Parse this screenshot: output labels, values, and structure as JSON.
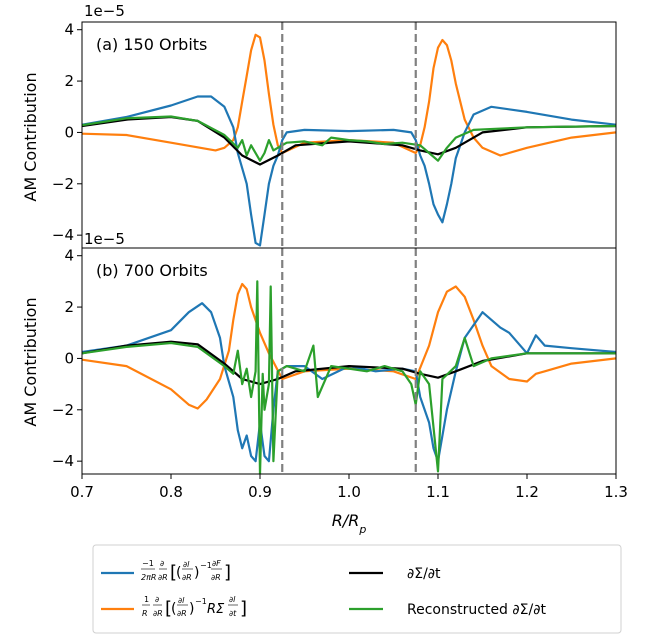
{
  "chart_data": [
    {
      "type": "line",
      "panel_title": "(a) 150 Orbits",
      "ylabel": "AM Contribution",
      "y_scale_label": "1e−5",
      "x_scale": 1e-05,
      "xlim": [
        0.7,
        1.3
      ],
      "ylim": [
        -4.5,
        4.3
      ],
      "yticks": [
        -4,
        -2,
        0,
        2,
        4
      ],
      "vlines": [
        0.925,
        1.075
      ],
      "series": [
        {
          "name": "flux",
          "points": [
            [
              0.7,
              0.3
            ],
            [
              0.75,
              0.6
            ],
            [
              0.8,
              1.05
            ],
            [
              0.83,
              1.4
            ],
            [
              0.845,
              1.4
            ],
            [
              0.86,
              1.0
            ],
            [
              0.87,
              0.2
            ],
            [
              0.875,
              -0.8
            ],
            [
              0.885,
              -2.0
            ],
            [
              0.89,
              -3.2
            ],
            [
              0.895,
              -4.3
            ],
            [
              0.9,
              -4.4
            ],
            [
              0.905,
              -3.2
            ],
            [
              0.91,
              -2.0
            ],
            [
              0.915,
              -1.3
            ],
            [
              0.92,
              -0.9
            ],
            [
              0.925,
              -0.3
            ],
            [
              0.93,
              0.0
            ],
            [
              0.95,
              0.1
            ],
            [
              1.0,
              0.05
            ],
            [
              1.05,
              0.1
            ],
            [
              1.07,
              0.0
            ],
            [
              1.075,
              -0.3
            ],
            [
              1.08,
              -0.9
            ],
            [
              1.085,
              -1.3
            ],
            [
              1.09,
              -2.0
            ],
            [
              1.095,
              -2.8
            ],
            [
              1.1,
              -3.2
            ],
            [
              1.105,
              -3.5
            ],
            [
              1.11,
              -2.8
            ],
            [
              1.115,
              -2.0
            ],
            [
              1.12,
              -1.0
            ],
            [
              1.13,
              0.0
            ],
            [
              1.14,
              0.7
            ],
            [
              1.16,
              1.0
            ],
            [
              1.2,
              0.8
            ],
            [
              1.25,
              0.5
            ],
            [
              1.3,
              0.3
            ]
          ]
        },
        {
          "name": "torque",
          "points": [
            [
              0.7,
              -0.05
            ],
            [
              0.75,
              -0.1
            ],
            [
              0.8,
              -0.4
            ],
            [
              0.85,
              -0.7
            ],
            [
              0.86,
              -0.6
            ],
            [
              0.87,
              -0.3
            ],
            [
              0.875,
              0.2
            ],
            [
              0.88,
              1.2
            ],
            [
              0.885,
              2.2
            ],
            [
              0.89,
              3.2
            ],
            [
              0.895,
              3.8
            ],
            [
              0.9,
              3.7
            ],
            [
              0.905,
              2.8
            ],
            [
              0.91,
              1.5
            ],
            [
              0.915,
              0.3
            ],
            [
              0.92,
              -0.5
            ],
            [
              0.925,
              -0.8
            ],
            [
              0.95,
              -0.4
            ],
            [
              1.0,
              -0.3
            ],
            [
              1.05,
              -0.4
            ],
            [
              1.075,
              -0.8
            ],
            [
              1.08,
              -0.5
            ],
            [
              1.085,
              0.2
            ],
            [
              1.09,
              1.2
            ],
            [
              1.095,
              2.5
            ],
            [
              1.1,
              3.3
            ],
            [
              1.105,
              3.6
            ],
            [
              1.11,
              3.4
            ],
            [
              1.115,
              2.8
            ],
            [
              1.12,
              1.9
            ],
            [
              1.13,
              0.5
            ],
            [
              1.14,
              -0.2
            ],
            [
              1.15,
              -0.6
            ],
            [
              1.17,
              -0.9
            ],
            [
              1.2,
              -0.6
            ],
            [
              1.25,
              -0.2
            ],
            [
              1.3,
              0.0
            ]
          ]
        },
        {
          "name": "dsigma",
          "points": [
            [
              0.7,
              0.25
            ],
            [
              0.75,
              0.5
            ],
            [
              0.8,
              0.6
            ],
            [
              0.83,
              0.45
            ],
            [
              0.86,
              -0.2
            ],
            [
              0.88,
              -0.9
            ],
            [
              0.9,
              -1.25
            ],
            [
              0.92,
              -0.9
            ],
            [
              0.94,
              -0.5
            ],
            [
              1.0,
              -0.35
            ],
            [
              1.06,
              -0.5
            ],
            [
              1.08,
              -0.7
            ],
            [
              1.1,
              -0.85
            ],
            [
              1.12,
              -0.6
            ],
            [
              1.15,
              0.0
            ],
            [
              1.2,
              0.2
            ],
            [
              1.3,
              0.25
            ]
          ]
        },
        {
          "name": "recon",
          "points": [
            [
              0.7,
              0.28
            ],
            [
              0.75,
              0.55
            ],
            [
              0.8,
              0.62
            ],
            [
              0.83,
              0.45
            ],
            [
              0.86,
              -0.1
            ],
            [
              0.875,
              -0.6
            ],
            [
              0.88,
              -0.3
            ],
            [
              0.885,
              -0.9
            ],
            [
              0.89,
              -0.5
            ],
            [
              0.9,
              -1.1
            ],
            [
              0.905,
              -0.8
            ],
            [
              0.91,
              -0.3
            ],
            [
              0.915,
              -0.7
            ],
            [
              0.92,
              -0.6
            ],
            [
              0.93,
              -0.4
            ],
            [
              0.95,
              -0.35
            ],
            [
              0.97,
              -0.5
            ],
            [
              0.98,
              -0.2
            ],
            [
              1.0,
              -0.3
            ],
            [
              1.02,
              -0.35
            ],
            [
              1.04,
              -0.45
            ],
            [
              1.06,
              -0.4
            ],
            [
              1.08,
              -0.5
            ],
            [
              1.09,
              -0.8
            ],
            [
              1.1,
              -1.1
            ],
            [
              1.11,
              -0.6
            ],
            [
              1.12,
              -0.2
            ],
            [
              1.14,
              0.1
            ],
            [
              1.2,
              0.2
            ],
            [
              1.3,
              0.25
            ]
          ]
        }
      ]
    },
    {
      "type": "line",
      "panel_title": "(b) 700 Orbits",
      "ylabel": "AM Contribution",
      "y_scale_label": "1e−5",
      "xlabel": "R/R_p",
      "xlim": [
        0.7,
        1.3
      ],
      "ylim": [
        -4.5,
        4.3
      ],
      "xticks": [
        0.7,
        0.8,
        0.9,
        1.0,
        1.1,
        1.2,
        1.3
      ],
      "xtick_labels": [
        "0.7",
        "0.8",
        "0.9",
        "1.0",
        "1.1",
        "1.2",
        "1.3"
      ],
      "yticks": [
        -4,
        -2,
        0,
        2,
        4
      ],
      "vlines": [
        0.925,
        1.075
      ],
      "series": [
        {
          "name": "flux",
          "points": [
            [
              0.7,
              0.25
            ],
            [
              0.75,
              0.5
            ],
            [
              0.8,
              1.1
            ],
            [
              0.82,
              1.8
            ],
            [
              0.835,
              2.15
            ],
            [
              0.845,
              1.8
            ],
            [
              0.855,
              0.8
            ],
            [
              0.86,
              -0.3
            ],
            [
              0.87,
              -1.5
            ],
            [
              0.875,
              -2.8
            ],
            [
              0.88,
              -3.5
            ],
            [
              0.885,
              -3.0
            ],
            [
              0.89,
              -3.8
            ],
            [
              0.895,
              -4.0
            ],
            [
              0.9,
              -2.5
            ],
            [
              0.905,
              -3.8
            ],
            [
              0.91,
              -4.0
            ],
            [
              0.915,
              -2.0
            ],
            [
              0.92,
              -0.5
            ],
            [
              0.93,
              -0.3
            ],
            [
              0.95,
              -0.3
            ],
            [
              0.97,
              -0.8
            ],
            [
              1.0,
              -0.3
            ],
            [
              1.03,
              -0.5
            ],
            [
              1.06,
              -0.4
            ],
            [
              1.075,
              -0.5
            ],
            [
              1.08,
              -1.5
            ],
            [
              1.09,
              -2.5
            ],
            [
              1.095,
              -3.5
            ],
            [
              1.1,
              -4.0
            ],
            [
              1.11,
              -2.0
            ],
            [
              1.12,
              -0.5
            ],
            [
              1.13,
              0.8
            ],
            [
              1.15,
              1.8
            ],
            [
              1.17,
              1.2
            ],
            [
              1.18,
              1.0
            ],
            [
              1.2,
              0.2
            ],
            [
              1.21,
              0.9
            ],
            [
              1.22,
              0.5
            ],
            [
              1.25,
              0.4
            ],
            [
              1.3,
              0.25
            ]
          ]
        },
        {
          "name": "torque",
          "points": [
            [
              0.7,
              -0.05
            ],
            [
              0.75,
              -0.3
            ],
            [
              0.8,
              -1.2
            ],
            [
              0.82,
              -1.8
            ],
            [
              0.83,
              -1.95
            ],
            [
              0.84,
              -1.6
            ],
            [
              0.855,
              -0.8
            ],
            [
              0.865,
              0.3
            ],
            [
              0.87,
              1.5
            ],
            [
              0.875,
              2.5
            ],
            [
              0.88,
              2.9
            ],
            [
              0.885,
              2.7
            ],
            [
              0.89,
              2.0
            ],
            [
              0.9,
              1.0
            ],
            [
              0.91,
              0.2
            ],
            [
              0.925,
              -0.8
            ],
            [
              0.95,
              -0.5
            ],
            [
              1.0,
              -0.4
            ],
            [
              1.05,
              -0.5
            ],
            [
              1.075,
              -0.8
            ],
            [
              1.09,
              0.5
            ],
            [
              1.1,
              1.8
            ],
            [
              1.11,
              2.6
            ],
            [
              1.12,
              2.8
            ],
            [
              1.13,
              2.4
            ],
            [
              1.14,
              1.5
            ],
            [
              1.15,
              0.5
            ],
            [
              1.16,
              -0.3
            ],
            [
              1.18,
              -0.8
            ],
            [
              1.2,
              -0.9
            ],
            [
              1.21,
              -0.6
            ],
            [
              1.22,
              -0.5
            ],
            [
              1.25,
              -0.2
            ],
            [
              1.3,
              0.0
            ]
          ]
        },
        {
          "name": "dsigma",
          "points": [
            [
              0.7,
              0.2
            ],
            [
              0.75,
              0.5
            ],
            [
              0.8,
              0.65
            ],
            [
              0.83,
              0.55
            ],
            [
              0.86,
              -0.2
            ],
            [
              0.88,
              -0.8
            ],
            [
              0.9,
              -1.0
            ],
            [
              0.92,
              -0.8
            ],
            [
              0.94,
              -0.5
            ],
            [
              1.0,
              -0.3
            ],
            [
              1.06,
              -0.4
            ],
            [
              1.08,
              -0.6
            ],
            [
              1.1,
              -0.75
            ],
            [
              1.12,
              -0.5
            ],
            [
              1.15,
              -0.1
            ],
            [
              1.2,
              0.2
            ],
            [
              1.3,
              0.2
            ]
          ]
        },
        {
          "name": "recon",
          "points": [
            [
              0.7,
              0.2
            ],
            [
              0.75,
              0.45
            ],
            [
              0.8,
              0.6
            ],
            [
              0.83,
              0.45
            ],
            [
              0.86,
              -0.3
            ],
            [
              0.87,
              -0.6
            ],
            [
              0.875,
              0.3
            ],
            [
              0.88,
              -1.0
            ],
            [
              0.885,
              -0.4
            ],
            [
              0.89,
              -1.5
            ],
            [
              0.895,
              -0.5
            ],
            [
              0.897,
              3.0
            ],
            [
              0.9,
              -4.5
            ],
            [
              0.903,
              -0.6
            ],
            [
              0.905,
              -2.0
            ],
            [
              0.91,
              -1.0
            ],
            [
              0.912,
              2.8
            ],
            [
              0.915,
              -4.0
            ],
            [
              0.92,
              -0.5
            ],
            [
              0.93,
              -0.3
            ],
            [
              0.95,
              -0.5
            ],
            [
              0.96,
              0.5
            ],
            [
              0.965,
              -1.5
            ],
            [
              0.98,
              -0.3
            ],
            [
              1.0,
              -0.4
            ],
            [
              1.02,
              -0.5
            ],
            [
              1.04,
              -0.3
            ],
            [
              1.06,
              -0.5
            ],
            [
              1.07,
              -1.0
            ],
            [
              1.075,
              -1.8
            ],
            [
              1.08,
              -0.5
            ],
            [
              1.09,
              -1.0
            ],
            [
              1.1,
              -4.4
            ],
            [
              1.105,
              -0.8
            ],
            [
              1.12,
              -0.3
            ],
            [
              1.13,
              0.8
            ],
            [
              1.14,
              -0.3
            ],
            [
              1.16,
              0.0
            ],
            [
              1.2,
              0.2
            ],
            [
              1.3,
              0.2
            ]
          ]
        }
      ]
    }
  ],
  "colors": {
    "flux": "#1f77b4",
    "torque": "#ff7f0e",
    "dsigma": "#000000",
    "recon": "#2ca02c",
    "vline": "#808080"
  },
  "legend": {
    "entries": [
      {
        "key": "flux"
      },
      {
        "key": "torque"
      },
      {
        "key": "dsigma",
        "label": "∂Σ/∂t"
      },
      {
        "key": "recon",
        "label": "Reconstructed ∂Σ/∂t"
      }
    ]
  }
}
